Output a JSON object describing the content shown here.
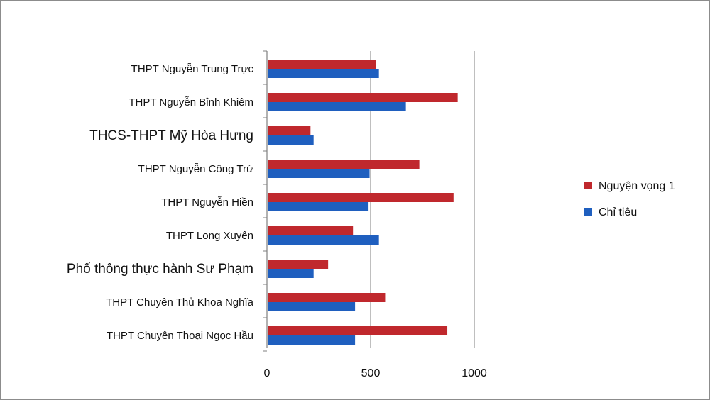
{
  "chart_data": {
    "type": "bar",
    "orientation": "horizontal",
    "categories": [
      "THPT Nguyễn Trung Trực",
      "THPT Nguyễn Bỉnh Khiêm",
      "THCS-THPT Mỹ Hòa Hưng",
      "THPT Nguyễn Công Trứ",
      "THPT Nguyễn Hiền",
      "THPT Long Xuyên",
      "Phổ thông thực hành Sư Phạm",
      "THPT Chuyên Thủ Khoa Nghĩa",
      "THPT Chuyên Thoại Ngọc Hầu"
    ],
    "series": [
      {
        "name": "Nguyện vọng 1",
        "color": "#c0282d",
        "values": [
          525,
          920,
          210,
          735,
          900,
          415,
          295,
          570,
          870
        ]
      },
      {
        "name": "Chỉ tiêu",
        "color": "#1f5fbf",
        "values": [
          540,
          670,
          225,
          495,
          490,
          540,
          225,
          425,
          425
        ]
      }
    ],
    "xlim": [
      0,
      1000
    ],
    "xticks": [
      "0",
      "500",
      "1000"
    ],
    "grid": "vertical",
    "legend": "right",
    "title": "",
    "xlabel": "",
    "ylabel": ""
  }
}
